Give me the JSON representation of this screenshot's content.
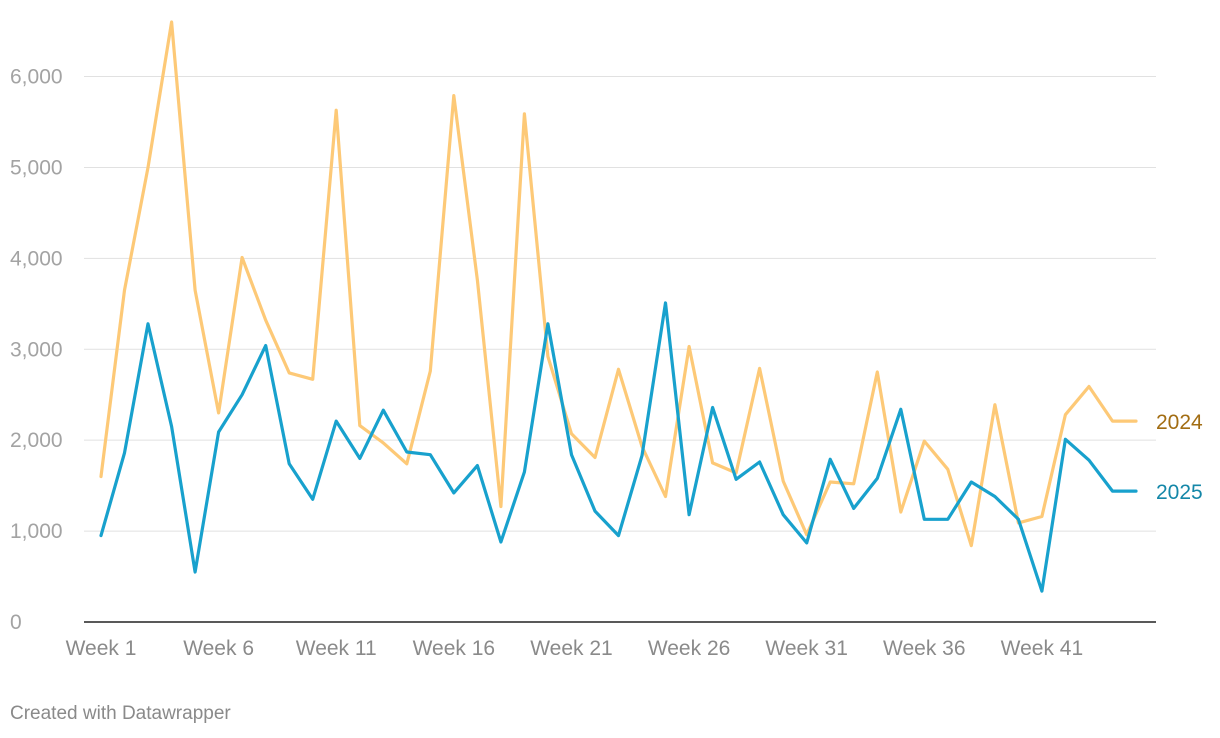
{
  "chart_data": {
    "type": "line",
    "title": "",
    "xlabel": "",
    "ylabel": "",
    "x": [
      "Week 1",
      "Week 2",
      "Week 3",
      "Week 4",
      "Week 5",
      "Week 6",
      "Week 7",
      "Week 8",
      "Week 9",
      "Week 10",
      "Week 11",
      "Week 12",
      "Week 13",
      "Week 14",
      "Week 15",
      "Week 16",
      "Week 17",
      "Week 18",
      "Week 19",
      "Week 20",
      "Week 21",
      "Week 22",
      "Week 23",
      "Week 24",
      "Week 25",
      "Week 26",
      "Week 27",
      "Week 28",
      "Week 29",
      "Week 30",
      "Week 31",
      "Week 32",
      "Week 33",
      "Week 34",
      "Week 35",
      "Week 36",
      "Week 37",
      "Week 38",
      "Week 39",
      "Week 40",
      "Week 41",
      "Week 42",
      "Week 43",
      "Week 44",
      "Week 45"
    ],
    "x_tick_labels": [
      "Week 1",
      "Week 6",
      "Week 11",
      "Week 16",
      "Week 21",
      "Week 26",
      "Week 31",
      "Week 36",
      "Week 41"
    ],
    "y_tick_labels": [
      "0",
      "1,000",
      "2,000",
      "3,000",
      "4,000",
      "5,000",
      "6,000"
    ],
    "ylim": [
      0,
      6600
    ],
    "yticks": [
      0,
      1000,
      2000,
      3000,
      4000,
      5000,
      6000
    ],
    "grid": true,
    "series": [
      {
        "name": "2024",
        "color": "#fdc977",
        "label_color": "#a26d13",
        "values": [
          1600,
          3650,
          5000,
          6600,
          3650,
          2300,
          4010,
          3320,
          2740,
          2670,
          5630,
          2160,
          1970,
          1740,
          2760,
          5790,
          3760,
          1270,
          5590,
          2920,
          2070,
          1810,
          2780,
          1930,
          1380,
          3030,
          1750,
          1640,
          2790,
          1550,
          960,
          1540,
          1520,
          2750,
          1210,
          1990,
          1680,
          840,
          2390,
          1090,
          1160,
          2280,
          2590,
          2210,
          2210
        ]
      },
      {
        "name": "2025",
        "color": "#18a1cd",
        "label_color": "#1487a8",
        "values": [
          950,
          1860,
          3280,
          2150,
          550,
          2090,
          2500,
          3040,
          1740,
          1350,
          2210,
          1800,
          2330,
          1870,
          1840,
          1420,
          1720,
          880,
          1650,
          3280,
          1840,
          1220,
          950,
          1830,
          3510,
          1180,
          2360,
          1570,
          1760,
          1180,
          870,
          1790,
          1250,
          1580,
          2340,
          1130,
          1130,
          1540,
          1380,
          1130,
          340,
          2010,
          1780,
          1440,
          1440
        ]
      }
    ]
  },
  "footer": {
    "credit": "Created with Datawrapper"
  }
}
